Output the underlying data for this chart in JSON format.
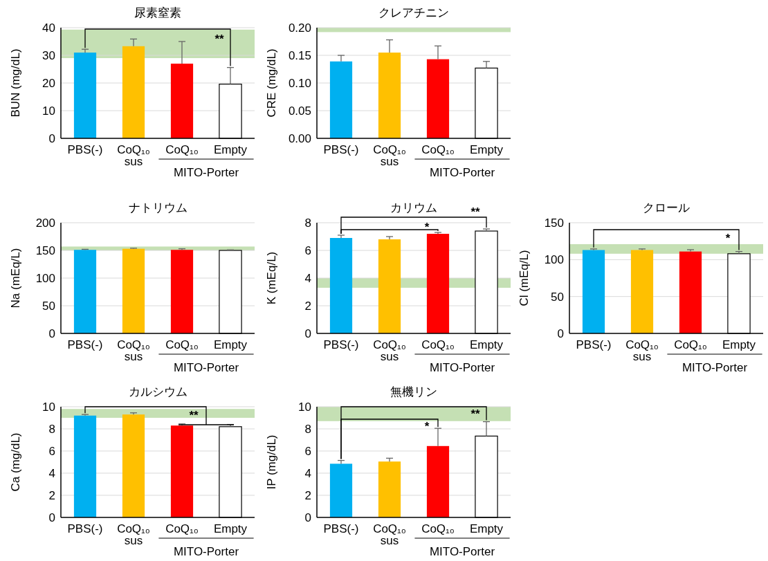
{
  "chart_data": [
    {
      "type": "bar",
      "title": "尿素窒素",
      "ylabel": "BUN (mg/dL)",
      "categories": [
        "PBS(-)",
        "CoQ₁₀ sus",
        "CoQ₁₀",
        "Empty"
      ],
      "values": [
        31,
        33.3,
        27,
        19.6
      ],
      "errors": [
        1.2,
        2.6,
        8,
        6
      ],
      "colors": [
        "#00b0f0",
        "#ffc000",
        "#ff0000",
        "#ffffff"
      ],
      "ylim": [
        0,
        40
      ],
      "yticks": [
        0,
        10,
        20,
        30,
        40
      ],
      "grid": "y",
      "bands": [
        {
          "axis": "y",
          "from": 29,
          "to": 39.3,
          "color": "#c5e0b4"
        }
      ],
      "annotations": [
        "MITO-Porter",
        "**"
      ]
    },
    {
      "type": "bar",
      "title": "クレアチニン",
      "ylabel": "CRE (mg/dL)",
      "categories": [
        "PBS(-)",
        "CoQ₁₀ sus",
        "CoQ₁₀",
        "Empty"
      ],
      "values": [
        0.139,
        0.155,
        0.143,
        0.127
      ],
      "errors": [
        0.011,
        0.023,
        0.024,
        0.012
      ],
      "colors": [
        "#00b0f0",
        "#ffc000",
        "#ff0000",
        "#ffffff"
      ],
      "ylim": [
        0,
        0.2
      ],
      "yticks": [
        {
          "value": 0,
          "label": "0.00"
        },
        {
          "value": 0.05,
          "label": "0.05"
        },
        {
          "value": 0.1,
          "label": "0.10"
        },
        {
          "value": 0.15,
          "label": "0.15"
        },
        {
          "value": 0.2,
          "label": "0.20"
        }
      ],
      "grid": "y",
      "bands": [
        {
          "axis": "y",
          "from": 0.192,
          "to": 0.2,
          "color": "#c5e0b4"
        }
      ],
      "annotations": [
        "MITO-Porter"
      ]
    },
    {
      "type": "bar",
      "title": "ナトリウム",
      "ylabel": "Na (mEq/L)",
      "categories": [
        "PBS(-)",
        "CoQ₁₀ sus",
        "CoQ₁₀",
        "Empty"
      ],
      "values": [
        151,
        153,
        151,
        150
      ],
      "errors": [
        1,
        1,
        2,
        1
      ],
      "colors": [
        "#00b0f0",
        "#ffc000",
        "#ff0000",
        "#ffffff"
      ],
      "ylim": [
        0,
        200
      ],
      "yticks": [
        0,
        50,
        100,
        150,
        200
      ],
      "grid": "y",
      "bands": [
        {
          "axis": "y",
          "from": 150,
          "to": 157,
          "color": "#c5e0b4"
        }
      ],
      "annotations": [
        "MITO-Porter"
      ]
    },
    {
      "type": "bar",
      "title": "カリウム",
      "ylabel": "K (mEq/L)",
      "categories": [
        "PBS(-)",
        "CoQ₁₀ sus",
        "CoQ₁₀",
        "Empty"
      ],
      "values": [
        6.9,
        6.8,
        7.2,
        7.4
      ],
      "errors": [
        0.2,
        0.2,
        0.1,
        0.15
      ],
      "colors": [
        "#00b0f0",
        "#ffc000",
        "#ff0000",
        "#ffffff"
      ],
      "ylim": [
        0,
        8
      ],
      "yticks": [
        0,
        2,
        4,
        6,
        8
      ],
      "grid": "y",
      "bands": [
        {
          "axis": "y",
          "from": 3.3,
          "to": 4.0,
          "color": "#c5e0b4"
        }
      ],
      "annotations": [
        "MITO-Porter",
        "*",
        "**"
      ]
    },
    {
      "type": "bar",
      "title": "クロール",
      "ylabel": "Cl (mEq/L)",
      "categories": [
        "PBS(-)",
        "CoQ₁₀ sus",
        "CoQ₁₀",
        "Empty"
      ],
      "values": [
        113,
        113,
        111,
        108
      ],
      "errors": [
        1.5,
        1.5,
        2.5,
        3
      ],
      "colors": [
        "#00b0f0",
        "#ffc000",
        "#ff0000",
        "#ffffff"
      ],
      "ylim": [
        0,
        150
      ],
      "yticks": [
        0,
        50,
        100,
        150
      ],
      "grid": "y",
      "bands": [
        {
          "axis": "y",
          "from": 108,
          "to": 121,
          "color": "#c5e0b4"
        }
      ],
      "annotations": [
        "MITO-Porter",
        "*"
      ]
    },
    {
      "type": "bar",
      "title": "カルシウム",
      "ylabel": "Ca (mg/dL)",
      "categories": [
        "PBS(-)",
        "CoQ₁₀ sus",
        "CoQ₁₀",
        "Empty"
      ],
      "values": [
        9.2,
        9.3,
        8.3,
        8.2
      ],
      "errors": [
        0.1,
        0.15,
        0.15,
        0.2
      ],
      "colors": [
        "#00b0f0",
        "#ffc000",
        "#ff0000",
        "#ffffff"
      ],
      "ylim": [
        0,
        10
      ],
      "yticks": [
        0,
        2,
        4,
        6,
        8,
        10
      ],
      "grid": "y",
      "bands": [
        {
          "axis": "y",
          "from": 9.0,
          "to": 9.8,
          "color": "#c5e0b4"
        }
      ],
      "annotations": [
        "MITO-Porter",
        {
          "text": "**",
          "y": 10.0
        }
      ]
    },
    {
      "type": "bar",
      "title": "無機リン",
      "ylabel": "IP (mg/dL)",
      "categories": [
        "PBS(-)",
        "CoQ₁₀ sus",
        "CoQ₁₀",
        "Empty"
      ],
      "values": [
        4.85,
        5.05,
        6.45,
        7.35
      ],
      "errors": [
        0.3,
        0.3,
        1.6,
        1.3
      ],
      "colors": [
        "#00b0f0",
        "#ffc000",
        "#ff0000",
        "#ffffff"
      ],
      "ylim": [
        0,
        10
      ],
      "yticks": [
        0,
        2,
        4,
        6,
        8,
        10
      ],
      "grid": "y",
      "bands": [
        {
          "axis": "y",
          "from": 8.7,
          "to": 10,
          "color": "#c5e0b4"
        }
      ],
      "annotations": [
        "MITO-Porter",
        "*",
        "**"
      ]
    }
  ]
}
